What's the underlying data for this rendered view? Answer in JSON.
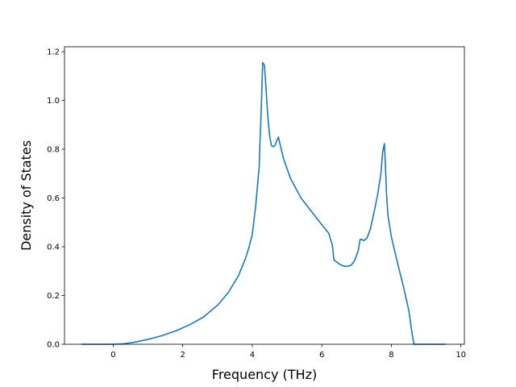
{
  "chart_data": {
    "type": "line",
    "title": "",
    "xlabel": "Frequency (THz)",
    "ylabel": "Density of States",
    "xlim": [
      -1.4,
      10.1
    ],
    "ylim": [
      0.0,
      1.22
    ],
    "xticks": [
      0,
      2,
      4,
      6,
      8,
      10
    ],
    "yticks": [
      0.0,
      0.2,
      0.4,
      0.6,
      0.8,
      1.0,
      1.2
    ],
    "xtick_labels": [
      "0",
      "2",
      "4",
      "6",
      "8",
      "10"
    ],
    "ytick_labels": [
      "0.0",
      "0.2",
      "0.4",
      "0.6",
      "0.8",
      "1.0",
      "1.2"
    ],
    "grid": false,
    "legend": false,
    "series": [
      {
        "color": "#1f77b4",
        "x": [
          -0.9,
          -0.5,
          0.0,
          0.3,
          0.6,
          1.0,
          1.4,
          1.8,
          2.2,
          2.6,
          3.0,
          3.3,
          3.6,
          3.8,
          3.9,
          4.0,
          4.05,
          4.1,
          4.15,
          4.2,
          4.22,
          4.25,
          4.3,
          4.35,
          4.45,
          4.5,
          4.55,
          4.6,
          4.65,
          4.75,
          4.9,
          5.1,
          5.4,
          5.7,
          6.0,
          6.2,
          6.25,
          6.3,
          6.35,
          6.45,
          6.55,
          6.65,
          6.75,
          6.85,
          6.95,
          7.05,
          7.1,
          7.15,
          7.2,
          7.3,
          7.4,
          7.5,
          7.6,
          7.7,
          7.75,
          7.8,
          7.83,
          7.86,
          7.9,
          8.0,
          8.1,
          8.2,
          8.35,
          8.5,
          8.6,
          8.65,
          8.7,
          9.0,
          9.55
        ],
        "y": [
          0.0,
          0.0,
          0.0,
          0.002,
          0.008,
          0.02,
          0.035,
          0.055,
          0.08,
          0.112,
          0.16,
          0.21,
          0.28,
          0.35,
          0.395,
          0.45,
          0.51,
          0.57,
          0.65,
          0.73,
          0.82,
          0.93,
          1.155,
          1.145,
          0.93,
          0.855,
          0.815,
          0.81,
          0.815,
          0.85,
          0.76,
          0.68,
          0.6,
          0.545,
          0.49,
          0.455,
          0.43,
          0.41,
          0.345,
          0.335,
          0.325,
          0.32,
          0.32,
          0.325,
          0.345,
          0.385,
          0.43,
          0.43,
          0.425,
          0.435,
          0.475,
          0.54,
          0.61,
          0.7,
          0.79,
          0.823,
          0.73,
          0.62,
          0.53,
          0.44,
          0.38,
          0.32,
          0.235,
          0.14,
          0.04,
          0.0,
          0.0,
          0.0,
          0.0
        ]
      }
    ]
  }
}
